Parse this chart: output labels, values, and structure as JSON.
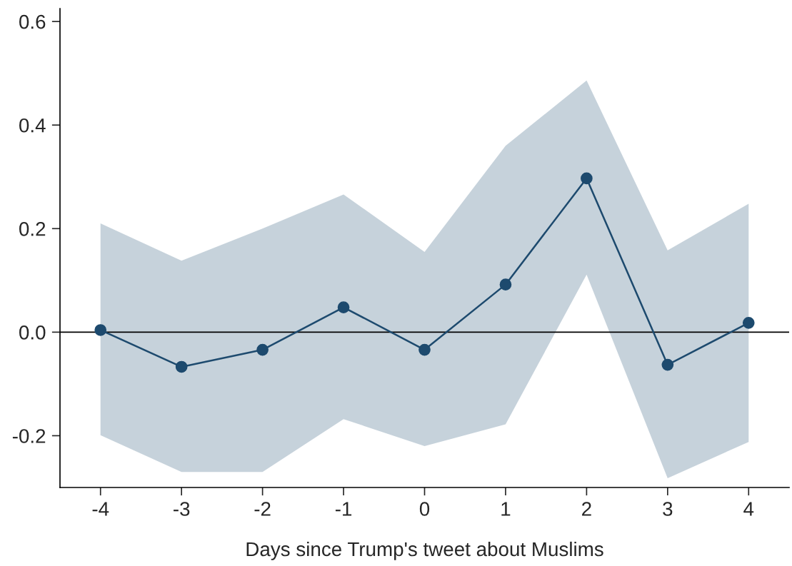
{
  "chart_data": {
    "type": "line",
    "xlabel": "Days since Trump's tweet about Muslims",
    "x": [
      -4,
      -3,
      -2,
      -1,
      0,
      1,
      2,
      3,
      4
    ],
    "series": [
      {
        "color": "#1d4a6e",
        "values": [
          0.004,
          -0.067,
          -0.034,
          0.048,
          -0.034,
          0.092,
          0.297,
          -0.063,
          0.018
        ],
        "lower": [
          -0.199,
          -0.27,
          -0.27,
          -0.168,
          -0.22,
          -0.178,
          0.111,
          -0.282,
          -0.212
        ],
        "upper": [
          0.21,
          0.138,
          0.2,
          0.266,
          0.155,
          0.36,
          0.486,
          0.158,
          0.248
        ]
      }
    ],
    "xlim": [
      -4.5,
      4.5
    ],
    "ylim": [
      -0.3,
      0.625
    ],
    "xticks": [
      -4,
      -3,
      -2,
      -1,
      0,
      1,
      2,
      3,
      4
    ],
    "yticks": [
      {
        "value": -0.2,
        "label": "-0.2"
      },
      {
        "value": 0.0,
        "label": "0.0"
      },
      {
        "value": 0.2,
        "label": "0.2"
      },
      {
        "value": 0.4,
        "label": "0.4"
      },
      {
        "value": 0.6,
        "label": "0.6"
      }
    ],
    "ref_lines": [
      {
        "axis": "y",
        "value": 0,
        "color": "#000000"
      }
    ],
    "marker": "circle",
    "line_style": "solid",
    "grid": false,
    "legend": false
  }
}
